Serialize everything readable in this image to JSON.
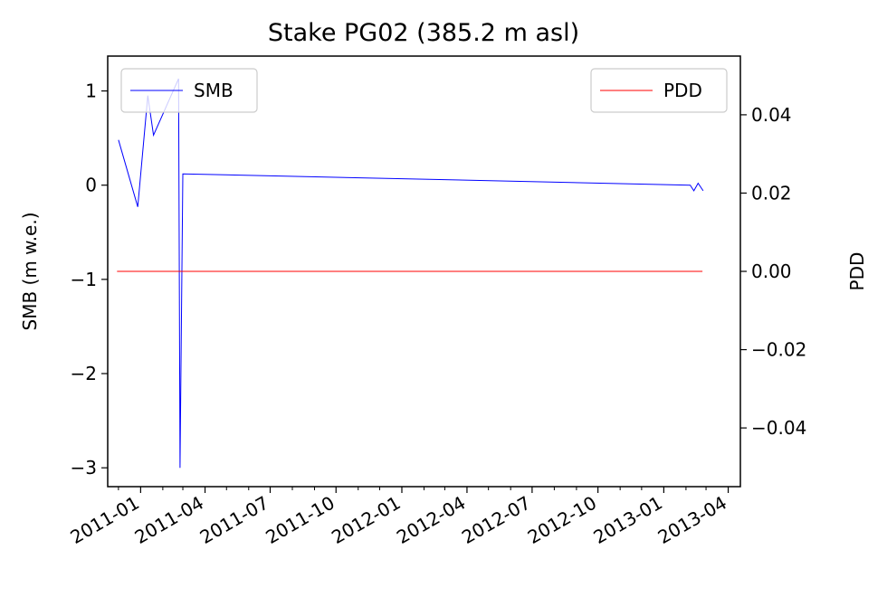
{
  "chart_data": {
    "type": "line",
    "title": "Stake PG02 (385.2 m asl)",
    "xlabel": "",
    "ylabel": "SMB (m w.e.)",
    "y2label": "PDD",
    "x_axis_type": "date",
    "xlim": [
      "2010-11-16",
      "2013-04-18"
    ],
    "ylim": [
      -3.2,
      1.37
    ],
    "y2lim": [
      -0.055,
      0.055
    ],
    "x_ticks": [
      "2011-01",
      "2011-04",
      "2011-07",
      "2011-10",
      "2012-01",
      "2012-04",
      "2012-07",
      "2012-10",
      "2013-01",
      "2013-04"
    ],
    "y_ticks": [
      1,
      0,
      -1,
      -2,
      -3
    ],
    "y_tick_labels": [
      "1",
      "0",
      "−1",
      "−2",
      "−3"
    ],
    "y2_ticks": [
      0.04,
      0.02,
      0.0,
      -0.02,
      -0.04
    ],
    "y2_tick_labels": [
      "0.04",
      "0.02",
      "0.00",
      "−0.02",
      "−0.04"
    ],
    "grid": false,
    "series": [
      {
        "name": "SMB",
        "axis": "left",
        "color": "#0000ff",
        "legend_position": "upper-left",
        "points": [
          {
            "x": "2010-12-01",
            "y": 0.48
          },
          {
            "x": "2010-12-28",
            "y": -0.23
          },
          {
            "x": "2011-01-11",
            "y": 0.95
          },
          {
            "x": "2011-01-19",
            "y": 0.53
          },
          {
            "x": "2011-02-23",
            "y": 1.13
          },
          {
            "x": "2011-02-25",
            "y": -3.0
          },
          {
            "x": "2011-03-01",
            "y": 0.12
          },
          {
            "x": "2013-02-07",
            "y": 0.0
          },
          {
            "x": "2013-02-12",
            "y": -0.06
          },
          {
            "x": "2013-02-18",
            "y": 0.02
          },
          {
            "x": "2013-02-25",
            "y": -0.06
          }
        ]
      },
      {
        "name": "PDD",
        "axis": "right",
        "color": "#ff0000",
        "legend_position": "upper-right",
        "points": [
          {
            "x": "2010-11-29",
            "y": 0.0
          },
          {
            "x": "2013-02-24",
            "y": 0.0
          }
        ]
      }
    ]
  }
}
